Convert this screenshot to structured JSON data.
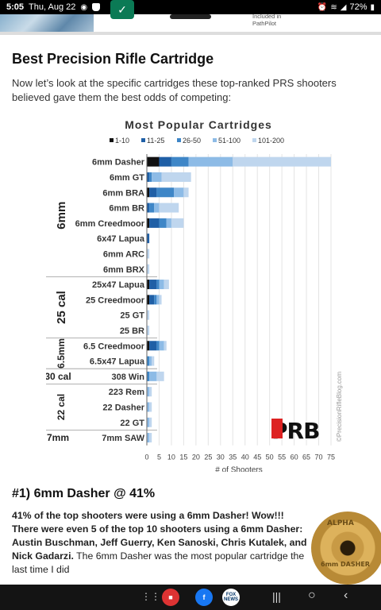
{
  "status": {
    "time": "5:05",
    "date": "Thu, Aug 22",
    "battery": "72%"
  },
  "top": {
    "pathpilot_line1": "Included in",
    "pathpilot_line2": "PathPilot"
  },
  "article": {
    "heading": "Best Precision Rifle Cartridge",
    "intro": "Now let’s look at the specific cartridges these top-ranked PRS shooters believed gave them the best odds of competing:"
  },
  "chart_data": {
    "type": "bar",
    "orientation": "horizontal",
    "stacked": true,
    "title": "Most Popular Cartridges",
    "xlabel": "# of Shooters",
    "ylabel": "",
    "xlim": [
      0,
      75
    ],
    "xticks": [
      0,
      5,
      10,
      15,
      20,
      25,
      30,
      35,
      40,
      45,
      50,
      55,
      60,
      65,
      70,
      75
    ],
    "legend_position": "top",
    "watermark": "©PrecisionRifleBlog.com",
    "logo": "PRB",
    "groups": [
      {
        "label": "6mm",
        "categories": [
          "6mm Dasher",
          "6mm GT",
          "6mm BRA",
          "6mm BR",
          "6mm Creedmoor",
          "6x47 Lapua",
          "6mm ARC",
          "6mm BRX"
        ]
      },
      {
        "label": "25 cal",
        "categories": [
          "25x47 Lapua",
          "25 Creedmoor",
          "25 GT",
          "25 BR"
        ]
      },
      {
        "label": "6.5mm",
        "categories": [
          "6.5 Creedmoor",
          "6.5x47 Lapua"
        ]
      },
      {
        "label": "30 cal",
        "categories": [
          "308 Win"
        ]
      },
      {
        "label": "22 cal",
        "categories": [
          "223 Rem",
          "22 Dasher",
          "22 GT"
        ]
      },
      {
        "label": "7mm",
        "categories": [
          "7mm SAW"
        ]
      }
    ],
    "categories": [
      "6mm Dasher",
      "6mm GT",
      "6mm BRA",
      "6mm BR",
      "6mm Creedmoor",
      "6x47 Lapua",
      "6mm ARC",
      "6mm BRX",
      "25x47 Lapua",
      "25 Creedmoor",
      "25 GT",
      "25 BR",
      "6.5 Creedmoor",
      "6.5x47 Lapua",
      "308 Win",
      "223 Rem",
      "22 Dasher",
      "22 GT",
      "7mm SAW"
    ],
    "series": [
      {
        "name": "1-10",
        "color": "#111111",
        "values": [
          5,
          0,
          1,
          0,
          1,
          0,
          0,
          0,
          1,
          1,
          0,
          0,
          1,
          0,
          0,
          0,
          0,
          0,
          0
        ]
      },
      {
        "name": "11-25",
        "color": "#1f5fa6",
        "values": [
          5,
          1,
          3,
          1,
          4,
          1,
          0,
          0,
          3,
          2,
          0,
          0,
          3,
          0,
          0,
          0,
          0,
          0,
          0
        ]
      },
      {
        "name": "26-50",
        "color": "#3e86c7",
        "values": [
          7,
          1,
          7,
          2,
          3,
          0,
          0,
          0,
          1,
          1,
          0,
          0,
          1,
          1,
          1,
          0,
          0,
          0,
          0
        ]
      },
      {
        "name": "51-100",
        "color": "#8dbbe6",
        "values": [
          18,
          4,
          4,
          2,
          2,
          0,
          0,
          0,
          2,
          1,
          0,
          0,
          2,
          1,
          3,
          1,
          1,
          1,
          1
        ]
      },
      {
        "name": "101-200",
        "color": "#bfd6ee",
        "values": [
          40,
          12,
          2,
          8,
          5,
          0,
          1,
          1,
          2,
          1,
          1,
          1,
          1,
          1,
          3,
          1,
          1,
          1,
          1
        ]
      }
    ]
  },
  "section": {
    "heading": "#1) 6mm Dasher @ 41%",
    "bold_text": "41% of the top shooters were using a 6mm Dasher! Wow!!! There were even 5 of the top 10 shooters using a 6mm Dasher: Austin Buschman, Jeff Guerry, Ken Sanoski, Chris Kutalek, and Nick Gadarzi.",
    "text": " The 6mm Dasher was the most popular cartridge the last time I did"
  },
  "casing": {
    "line1": "ALPHA",
    "line2": "6mm DASHER"
  },
  "navbar": {
    "app2_label": "FOX NEWS"
  }
}
